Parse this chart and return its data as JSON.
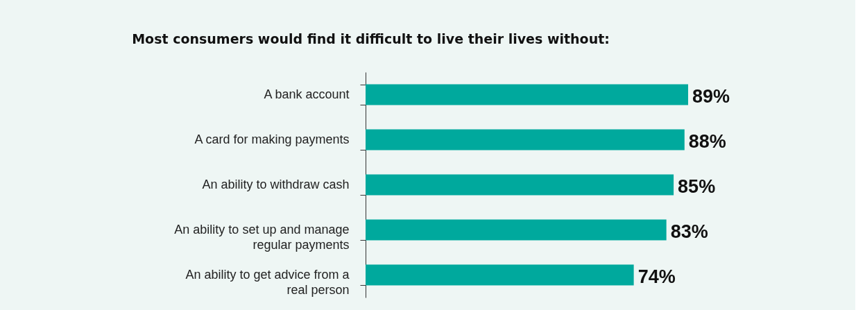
{
  "chart_data": {
    "type": "bar",
    "orientation": "horizontal",
    "title": "Most consumers would find it difficult to live their lives without:",
    "categories": [
      "A bank account",
      "A card for making payments",
      "An ability to withdraw cash",
      "An ability to set up and manage regular payments",
      "An ability to get advice from a real person"
    ],
    "values": [
      89,
      88,
      85,
      83,
      74
    ],
    "value_labels": [
      "89%",
      "88%",
      "85%",
      "83%",
      "74%"
    ],
    "color": "#00a99d"
  }
}
